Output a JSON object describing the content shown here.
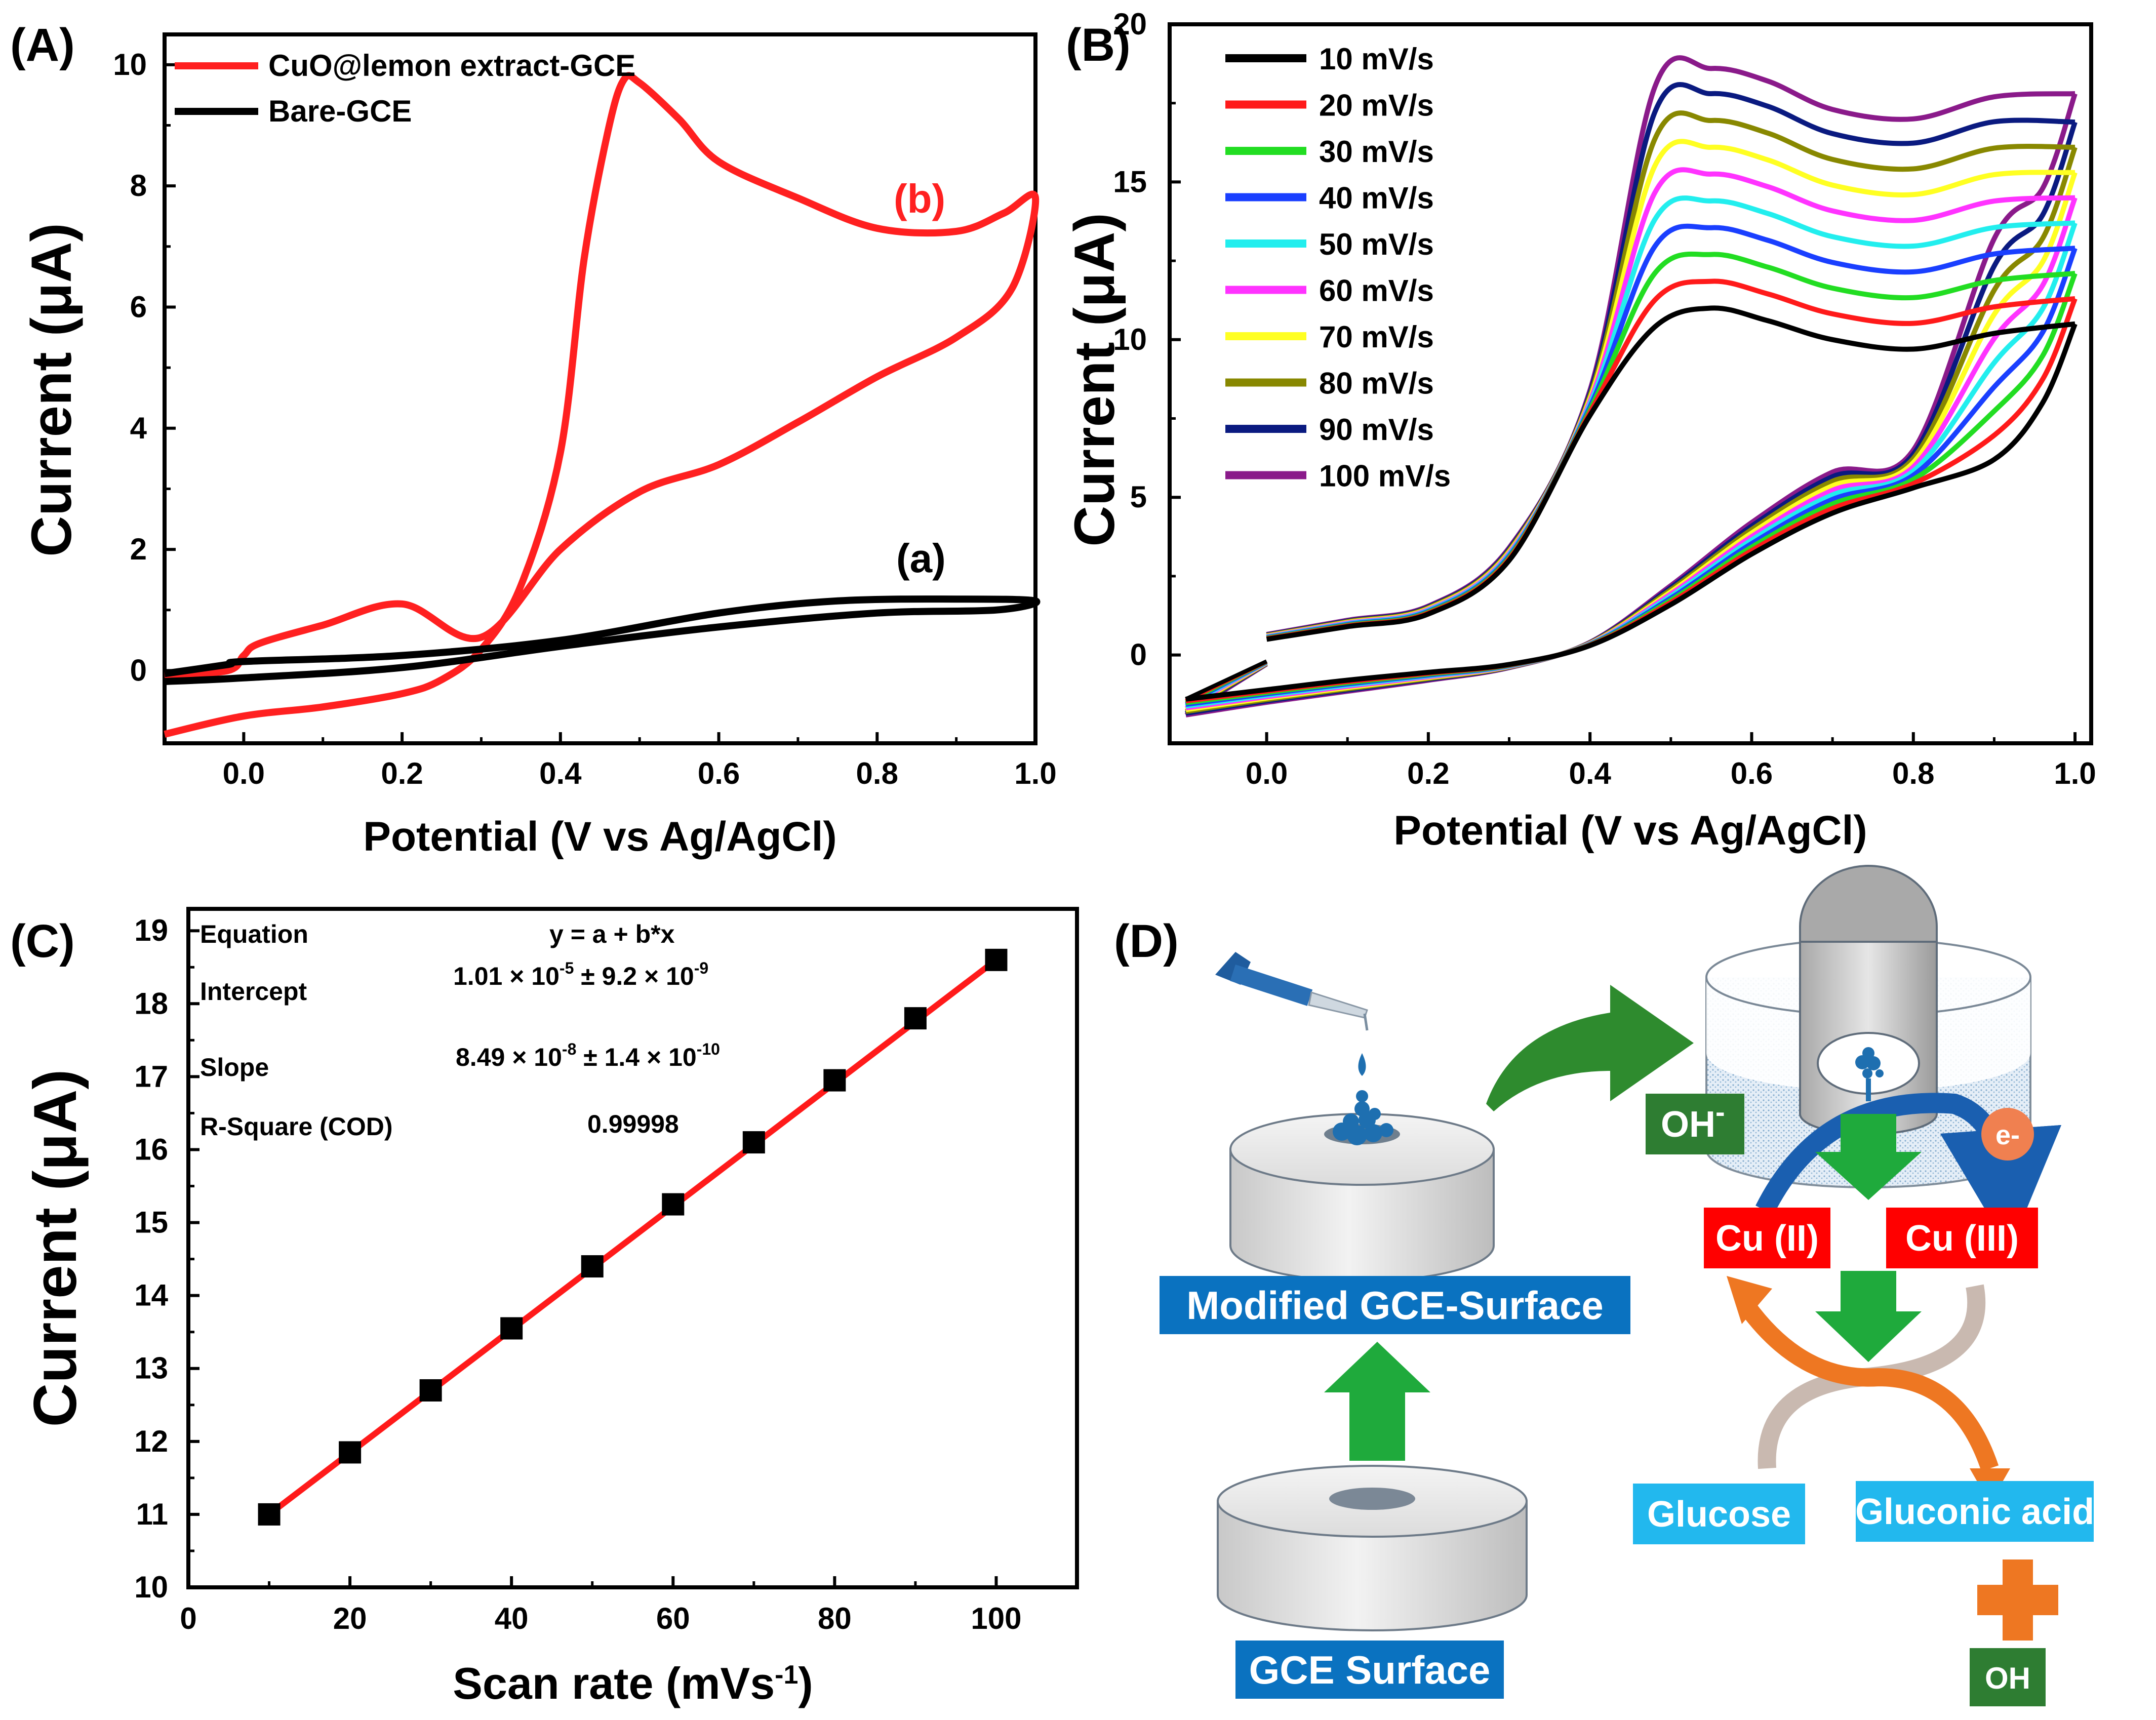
{
  "chart_data": [
    {
      "panel": "(A)",
      "type": "line",
      "xlabel": "Potential (V vs Ag/AgCl)",
      "ylabel": "Current (μA)",
      "xlim": [
        -0.1,
        1.0
      ],
      "ylim": [
        -1.2,
        10.5
      ],
      "xticks": [
        "0.0",
        "0.2",
        "0.4",
        "0.6",
        "0.8",
        "1.0"
      ],
      "yticks": [
        "0",
        "2",
        "4",
        "6",
        "8",
        "10"
      ],
      "legend": [
        "CuO@lemon extract-GCE",
        "Bare-GCE"
      ],
      "annotations": [
        "(b)",
        "(a)"
      ],
      "series": [
        {
          "name": "CuO@lemon extract-GCE",
          "color": "#ff2020",
          "forward": [
            [
              -0.1,
              -1.05
            ],
            [
              0.0,
              -0.75
            ],
            [
              0.1,
              -0.6
            ],
            [
              0.2,
              -0.38
            ],
            [
              0.25,
              -0.15
            ],
            [
              0.3,
              0.35
            ],
            [
              0.35,
              1.4
            ],
            [
              0.4,
              3.6
            ],
            [
              0.43,
              6.8
            ],
            [
              0.46,
              8.9
            ],
            [
              0.48,
              9.75
            ],
            [
              0.5,
              9.7
            ],
            [
              0.55,
              9.1
            ],
            [
              0.6,
              8.4
            ],
            [
              0.7,
              7.8
            ],
            [
              0.8,
              7.3
            ],
            [
              0.9,
              7.25
            ],
            [
              0.96,
              7.55
            ],
            [
              1.0,
              7.8
            ]
          ],
          "reverse": [
            [
              1.0,
              7.8
            ],
            [
              0.97,
              6.3
            ],
            [
              0.9,
              5.5
            ],
            [
              0.8,
              4.85
            ],
            [
              0.7,
              4.1
            ],
            [
              0.6,
              3.4
            ],
            [
              0.5,
              2.95
            ],
            [
              0.4,
              2.0
            ],
            [
              0.3,
              0.55
            ],
            [
              0.2,
              1.1
            ],
            [
              0.1,
              0.75
            ],
            [
              0.02,
              0.45
            ],
            [
              0.0,
              0.25
            ],
            [
              -0.02,
              0.0
            ],
            [
              -0.1,
              -0.08
            ]
          ]
        },
        {
          "name": "Bare-GCE",
          "color": "#000000",
          "forward": [
            [
              -0.1,
              -0.18
            ],
            [
              0.0,
              -0.12
            ],
            [
              0.2,
              0.05
            ],
            [
              0.4,
              0.4
            ],
            [
              0.6,
              0.72
            ],
            [
              0.8,
              0.95
            ],
            [
              0.95,
              1.0
            ],
            [
              1.0,
              1.15
            ]
          ],
          "reverse": [
            [
              1.0,
              1.18
            ],
            [
              0.9,
              1.18
            ],
            [
              0.75,
              1.15
            ],
            [
              0.6,
              0.95
            ],
            [
              0.4,
              0.5
            ],
            [
              0.2,
              0.25
            ],
            [
              0.0,
              0.15
            ],
            [
              -0.02,
              0.1
            ],
            [
              -0.1,
              -0.05
            ]
          ]
        }
      ]
    },
    {
      "panel": "(B)",
      "type": "line",
      "xlabel": "Potential (V vs Ag/AgCl)",
      "ylabel": "Current (μA)",
      "xlim": [
        -0.12,
        1.02
      ],
      "ylim": [
        -2.8,
        20
      ],
      "xticks": [
        "0.0",
        "0.2",
        "0.4",
        "0.6",
        "0.8",
        "1.0"
      ],
      "yticks": [
        "0",
        "5",
        "10",
        "15",
        "20"
      ],
      "legend": [
        "10 mV/s",
        "20 mV/s",
        "30 mV/s",
        "40 mV/s",
        "50 mV/s",
        "60 mV/s",
        "70 mV/s",
        "80 mV/s",
        "90 mV/s",
        "100 mV/s"
      ],
      "series_colors": [
        "#000000",
        "#ff1a1a",
        "#22dd22",
        "#1a3fff",
        "#22eeee",
        "#ff33ff",
        "#ffff22",
        "#888800",
        "#0a1a80",
        "#8a1a8a"
      ],
      "peak_currents": [
        11.0,
        11.85,
        12.7,
        13.55,
        14.4,
        15.25,
        16.1,
        16.95,
        17.8,
        18.6
      ],
      "vertex_currents": [
        10.5,
        11.3,
        12.1,
        12.9,
        13.7,
        14.5,
        15.3,
        16.1,
        16.9,
        17.8
      ]
    },
    {
      "panel": "(C)",
      "type": "scatter",
      "xlabel": "Scan rate (mVs",
      "xlabel_sup": "-1",
      "xlabel_close": ")",
      "ylabel": "Current (μA)",
      "xlim": [
        0,
        110
      ],
      "ylim": [
        10,
        19.3
      ],
      "xticks": [
        "0",
        "20",
        "40",
        "60",
        "80",
        "100"
      ],
      "yticks": [
        "10",
        "11",
        "12",
        "13",
        "14",
        "15",
        "16",
        "17",
        "18",
        "19"
      ],
      "x": [
        10,
        20,
        30,
        40,
        50,
        60,
        70,
        80,
        90,
        100
      ],
      "y": [
        11.0,
        11.85,
        12.7,
        13.55,
        14.4,
        15.25,
        16.1,
        16.95,
        17.8,
        18.6
      ],
      "fit": {
        "x0": 10,
        "y0": 11.0,
        "x1": 100,
        "y1": 18.6,
        "color": "#ff1a1a"
      },
      "stats": {
        "equation_label": "Equation",
        "equation": "y = a + b*x",
        "intercept_label": "Intercept",
        "intercept_a": "1.01 × 10",
        "intercept_a_sup": "-5",
        "intercept_b": " ± 9.2 × 10",
        "intercept_b_sup": "-9",
        "slope_label": "Slope",
        "slope_a": "8.49 × 10",
        "slope_a_sup": "-8",
        "slope_b": " ± 1.4 × 10",
        "slope_b_sup": "-10",
        "r2_label": "R-Square (COD)",
        "r2": "0.99998"
      }
    }
  ],
  "panel_d": {
    "label": "(D)",
    "modified_surface": "Modified GCE-Surface",
    "gce_surface": "GCE Surface",
    "oh_minus": "OH",
    "oh_minus_sup": "-",
    "electron": "e-",
    "cu2": "Cu (II)",
    "cu3": "Cu (III)",
    "glucose": "Glucose",
    "gluconic_acid": "Gluconic acid",
    "oh": "OH",
    "colors": {
      "blue_box": "#0a72c0",
      "light_blue_box": "#22b8ee",
      "red_box": "#ff0000",
      "green_box": "#2e7d32",
      "green_arrow": "#1faa3c",
      "orange": "#ee7722",
      "electron_ball": "#f08050"
    }
  }
}
